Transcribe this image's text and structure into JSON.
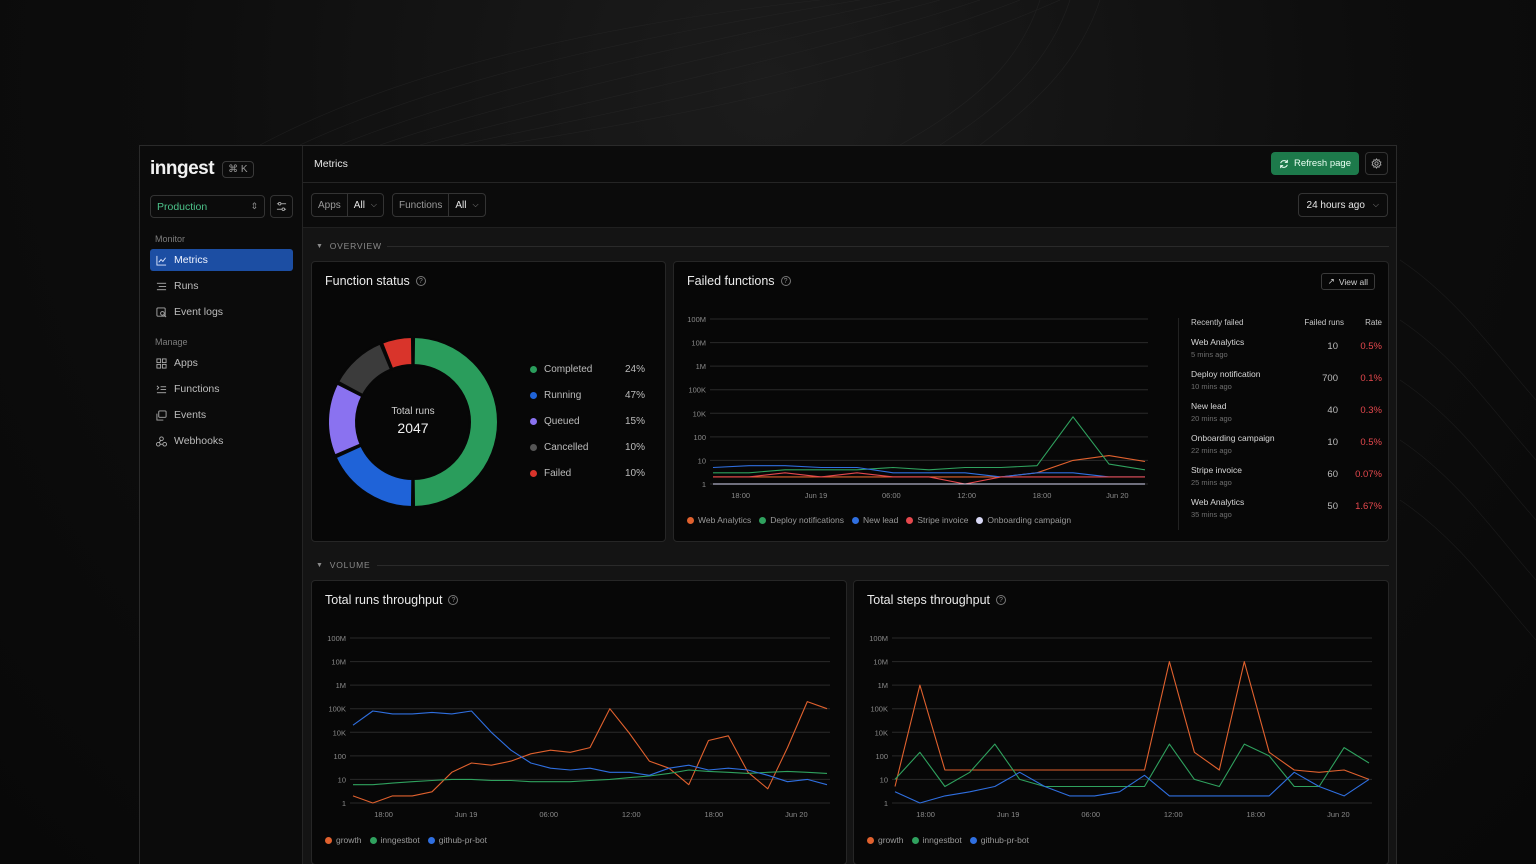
{
  "brand": {
    "logo": "inngest",
    "shortcut": "⌘ K"
  },
  "env": {
    "selected": "Production"
  },
  "nav": {
    "monitor_label": "Monitor",
    "manage_label": "Manage",
    "items": [
      {
        "label": "Metrics",
        "icon": "chart-line-icon",
        "active": true
      },
      {
        "label": "Runs",
        "icon": "list-icon"
      },
      {
        "label": "Event logs",
        "icon": "search-doc-icon"
      },
      {
        "label": "Apps",
        "icon": "apps-grid-icon"
      },
      {
        "label": "Functions",
        "icon": "functions-list-icon"
      },
      {
        "label": "Events",
        "icon": "events-stack-icon"
      },
      {
        "label": "Webhooks",
        "icon": "webhook-icon"
      }
    ]
  },
  "header": {
    "title": "Metrics",
    "refresh_label": "Refresh page"
  },
  "filters": {
    "apps_label": "Apps",
    "apps_value": "All",
    "functions_label": "Functions",
    "functions_value": "All",
    "time_value": "24 hours ago"
  },
  "sections": {
    "overview": "OVERVIEW",
    "volume": "VOLUME"
  },
  "function_status": {
    "title": "Function status",
    "center_label": "Total runs",
    "total": "2047",
    "segments": [
      {
        "label": "Completed",
        "pct": "24%",
        "value": 49,
        "color": "#2a9d5c"
      },
      {
        "label": "Running",
        "pct": "47%",
        "value": 18,
        "color": "#1f63d8"
      },
      {
        "label": "Queued",
        "pct": "15%",
        "value": 14,
        "color": "#8a72f0"
      },
      {
        "label": "Cancelled",
        "pct": "10%",
        "value": 11,
        "color": "#3b3b3b"
      },
      {
        "label": "Failed",
        "pct": "10%",
        "value": 6,
        "color": "#d9342b"
      }
    ]
  },
  "failed_functions": {
    "title": "Failed functions",
    "view_all": "View all",
    "table_headers": [
      "Recently failed",
      "Failed runs",
      "Rate"
    ],
    "rows": [
      {
        "name": "Web Analytics",
        "time": "5 mins ago",
        "runs": "10",
        "rate": "0.5%"
      },
      {
        "name": "Deploy notification",
        "time": "10 mins ago",
        "runs": "700",
        "rate": "0.1%"
      },
      {
        "name": "New lead",
        "time": "20 mins ago",
        "runs": "40",
        "rate": "0.3%"
      },
      {
        "name": "Onboarding campaign",
        "time": "22 mins ago",
        "runs": "10",
        "rate": "0.5%"
      },
      {
        "name": "Stripe invoice",
        "time": "25 mins ago",
        "runs": "60",
        "rate": "0.07%"
      },
      {
        "name": "Web Analytics",
        "time": "35 mins ago",
        "runs": "50",
        "rate": "1.67%"
      }
    ],
    "legend": [
      {
        "name": "Web Analytics",
        "color": "#e0612e"
      },
      {
        "name": "Deploy notifications",
        "color": "#2fa15e"
      },
      {
        "name": "New lead",
        "color": "#2f6fe0"
      },
      {
        "name": "Stripe invoice",
        "color": "#e5484d"
      },
      {
        "name": "Onboarding campaign",
        "color": "#d8d8f5"
      }
    ]
  },
  "runs_throughput": {
    "title": "Total runs throughput",
    "legend": [
      {
        "name": "growth",
        "color": "#e0612e"
      },
      {
        "name": "inngestbot",
        "color": "#2fa15e"
      },
      {
        "name": "github-pr-bot",
        "color": "#2f6fe0"
      }
    ]
  },
  "steps_throughput": {
    "title": "Total steps throughput",
    "legend": [
      {
        "name": "growth",
        "color": "#e0612e"
      },
      {
        "name": "inngestbot",
        "color": "#2fa15e"
      },
      {
        "name": "github-pr-bot",
        "color": "#2f6fe0"
      }
    ]
  },
  "chart_data": [
    {
      "type": "line",
      "title": "Failed functions",
      "y_scale": "log",
      "y_ticks": [
        "1",
        "10",
        "100",
        "10K",
        "100K",
        "1M",
        "10M",
        "100M"
      ],
      "x_ticks": [
        "18:00",
        "Jun 19",
        "06:00",
        "12:00",
        "18:00",
        "Jun 20"
      ],
      "series": [
        {
          "name": "Web Analytics",
          "color": "#e0612e",
          "values": [
            2,
            2,
            2,
            2,
            2,
            2,
            2,
            2,
            2,
            3,
            10,
            16,
            9
          ]
        },
        {
          "name": "Deploy notifications",
          "color": "#2fa15e",
          "values": [
            3,
            3,
            4,
            4,
            4,
            5,
            4,
            5,
            5,
            6,
            5000,
            7,
            4
          ]
        },
        {
          "name": "New lead",
          "color": "#2f6fe0",
          "values": [
            5,
            6,
            6,
            5,
            5,
            3,
            3,
            3,
            2,
            3,
            3,
            2,
            2
          ]
        },
        {
          "name": "Stripe invoice",
          "color": "#e5484d",
          "values": [
            2,
            2,
            3,
            2,
            3,
            2,
            2,
            1,
            2,
            2,
            2,
            2,
            2
          ]
        },
        {
          "name": "Onboarding campaign",
          "color": "#d8d8f5",
          "values": [
            1,
            1,
            1,
            1,
            1,
            1,
            1,
            1,
            1,
            1,
            1,
            1,
            1
          ]
        }
      ]
    },
    {
      "type": "line",
      "title": "Total runs throughput",
      "y_scale": "log",
      "y_ticks": [
        "1",
        "10",
        "100",
        "10K",
        "100K",
        "1M",
        "10M",
        "100M"
      ],
      "x_ticks": [
        "18:00",
        "Jun 19",
        "06:00",
        "12:00",
        "18:00",
        "Jun 20"
      ],
      "series": [
        {
          "name": "growth",
          "values": [
            2,
            1,
            2,
            2,
            3,
            20,
            50,
            40,
            60,
            150,
            300,
            200,
            500,
            100000,
            8000,
            60,
            30,
            6,
            2000,
            5000,
            20,
            4,
            500,
            200000,
            100000
          ]
        },
        {
          "name": "inngestbot",
          "values": [
            6,
            6,
            7,
            8,
            9,
            10,
            10,
            9,
            9,
            8,
            8,
            8,
            9,
            10,
            12,
            14,
            18,
            25,
            22,
            20,
            18,
            20,
            22,
            20,
            18
          ]
        },
        {
          "name": "github-pr-bot",
          "values": [
            20000,
            80000,
            60000,
            60000,
            70000,
            60000,
            80000,
            10000,
            300,
            50,
            30,
            25,
            30,
            20,
            20,
            15,
            30,
            40,
            25,
            30,
            25,
            15,
            8,
            10,
            6
          ]
        }
      ]
    },
    {
      "type": "line",
      "title": "Total steps throughput",
      "y_scale": "log",
      "y_ticks": [
        "1",
        "10",
        "100",
        "10K",
        "100K",
        "1M",
        "10M",
        "100M"
      ],
      "x_ticks": [
        "18:00",
        "Jun 19",
        "06:00",
        "12:00",
        "18:00",
        "Jun 20"
      ],
      "series": [
        {
          "name": "growth",
          "values": [
            5,
            1000000,
            25,
            25,
            25,
            25,
            25,
            25,
            25,
            25,
            25,
            10000000,
            200,
            25,
            10000000,
            200,
            25,
            20,
            25,
            10
          ]
        },
        {
          "name": "inngestbot",
          "values": [
            10,
            200,
            5,
            20,
            1000,
            10,
            5,
            5,
            5,
            5,
            5,
            1000,
            10,
            5,
            1000,
            100,
            5,
            5,
            500,
            50
          ]
        },
        {
          "name": "github-pr-bot",
          "values": [
            3,
            1,
            2,
            3,
            5,
            20,
            5,
            2,
            2,
            3,
            15,
            2,
            2,
            2,
            2,
            2,
            20,
            5,
            2,
            10
          ]
        }
      ]
    }
  ]
}
